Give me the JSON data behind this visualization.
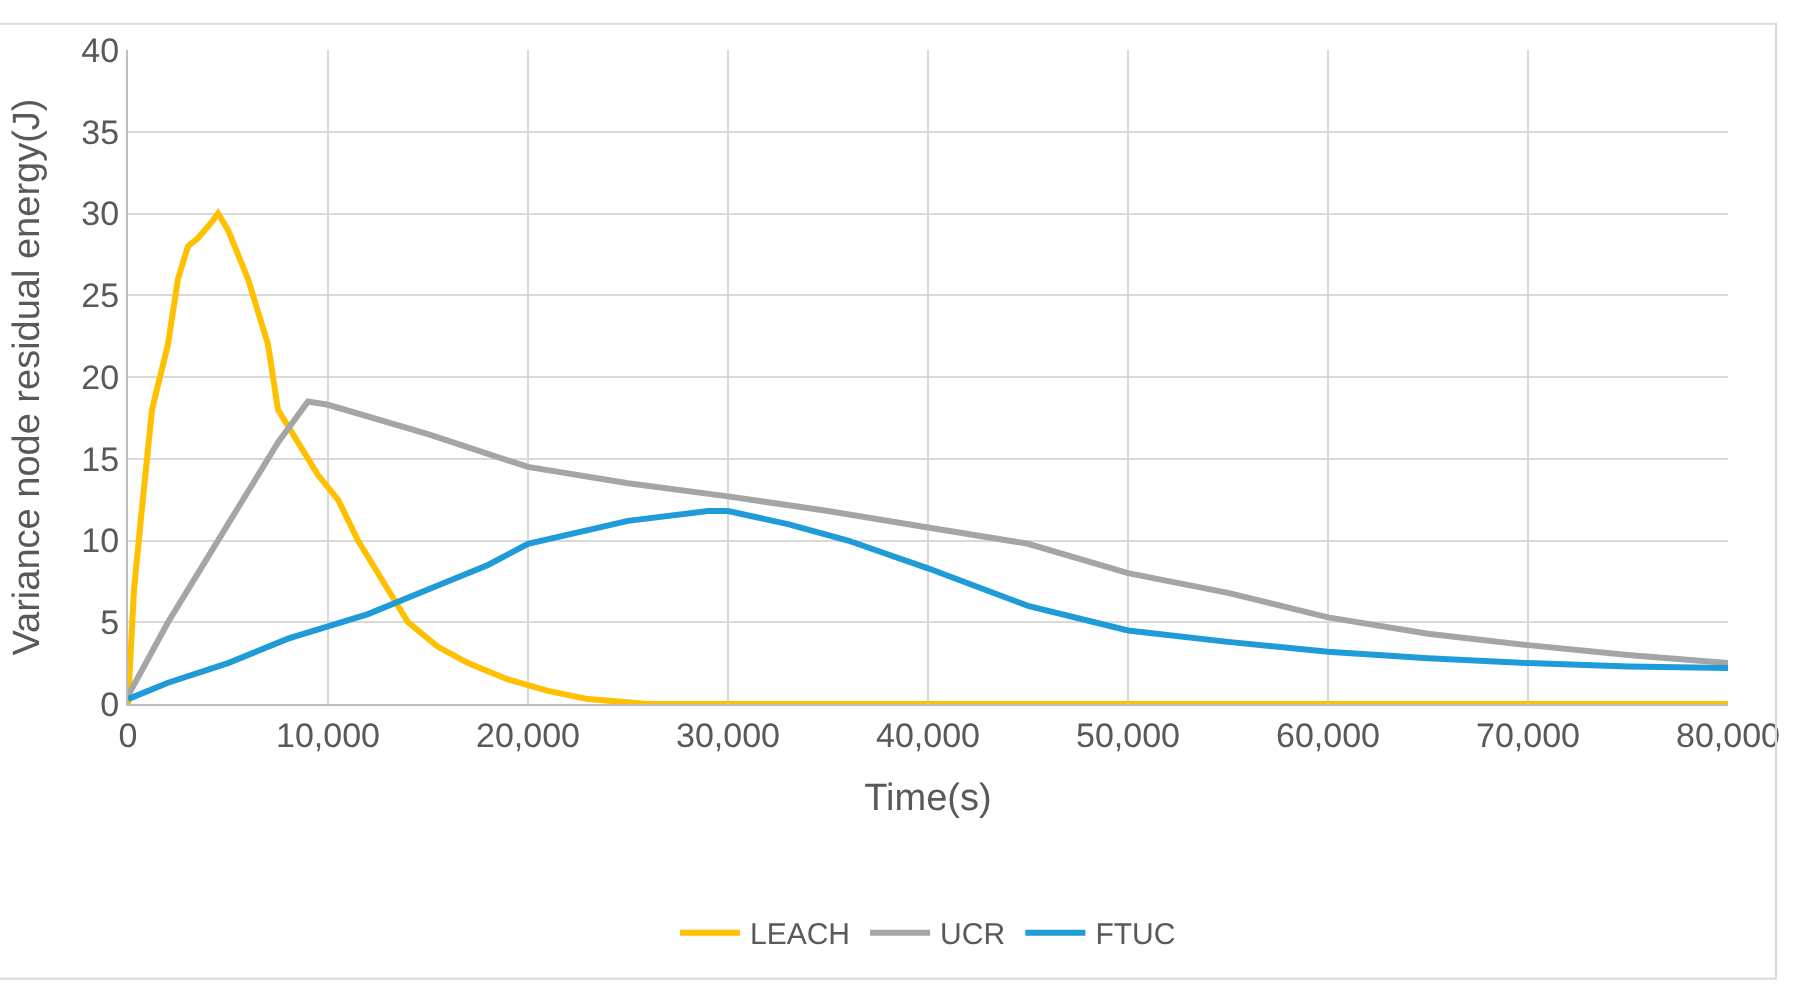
{
  "chart_data": {
    "type": "line",
    "xlabel": "Time(s)",
    "ylabel": "Variance node residual energy(J)",
    "xlim": [
      0,
      80000
    ],
    "xticks": [
      {
        "value": 0,
        "label": "0"
      },
      {
        "value": 10000,
        "label": "10,000"
      },
      {
        "value": 20000,
        "label": "20,000"
      },
      {
        "value": 30000,
        "label": "30,000"
      },
      {
        "value": 40000,
        "label": "40,000"
      },
      {
        "value": 50000,
        "label": "50,000"
      },
      {
        "value": 60000,
        "label": "60,000"
      },
      {
        "value": 70000,
        "label": "70,000"
      },
      {
        "value": 80000,
        "label": "80,000"
      }
    ],
    "ylim": [
      0,
      40
    ],
    "yticks": [
      0,
      5,
      10,
      15,
      20,
      25,
      30,
      35,
      40
    ],
    "grid": true,
    "legend": "bottom",
    "marker": "none",
    "line_style": "solid",
    "series": [
      {
        "name": "LEACH",
        "color": "#ffc000",
        "x": [
          0,
          300,
          700,
          1200,
          2000,
          2500,
          3000,
          3500,
          4200,
          4500,
          5000,
          6000,
          6500,
          7000,
          7500,
          8500,
          9500,
          10500,
          11500,
          12500,
          14000,
          15500,
          17000,
          19000,
          21000,
          23000,
          26000,
          80000
        ],
        "values": [
          0,
          7,
          12,
          18,
          22,
          26,
          28,
          28.5,
          29.5,
          30,
          29,
          26,
          24,
          22,
          18,
          16,
          14,
          12.5,
          10,
          8,
          5,
          3.5,
          2.5,
          1.5,
          0.8,
          0.3,
          0,
          0
        ]
      },
      {
        "name": "UCR",
        "color": "#a5a5a5",
        "x": [
          0,
          2000,
          4000,
          6000,
          7500,
          9000,
          10000,
          15000,
          20000,
          25000,
          30000,
          35000,
          40000,
          45000,
          50000,
          55000,
          60000,
          65000,
          70000,
          75000,
          80000
        ],
        "values": [
          0.5,
          5,
          9,
          13,
          16,
          18.5,
          18.3,
          16.5,
          14.5,
          13.5,
          12.7,
          11.8,
          10.8,
          9.8,
          8,
          6.8,
          5.3,
          4.3,
          3.6,
          3,
          2.5
        ]
      },
      {
        "name": "FTUC",
        "color": "#1f9bd7",
        "x": [
          0,
          2000,
          5000,
          8000,
          12000,
          15000,
          18000,
          20000,
          25000,
          29000,
          30000,
          33000,
          36000,
          40000,
          45000,
          50000,
          55000,
          60000,
          65000,
          70000,
          75000,
          80000
        ],
        "values": [
          0.3,
          1.3,
          2.5,
          4,
          5.5,
          7,
          8.5,
          9.8,
          11.2,
          11.8,
          11.8,
          11,
          10,
          8.3,
          6,
          4.5,
          3.8,
          3.2,
          2.8,
          2.5,
          2.3,
          2.2
        ]
      }
    ]
  }
}
